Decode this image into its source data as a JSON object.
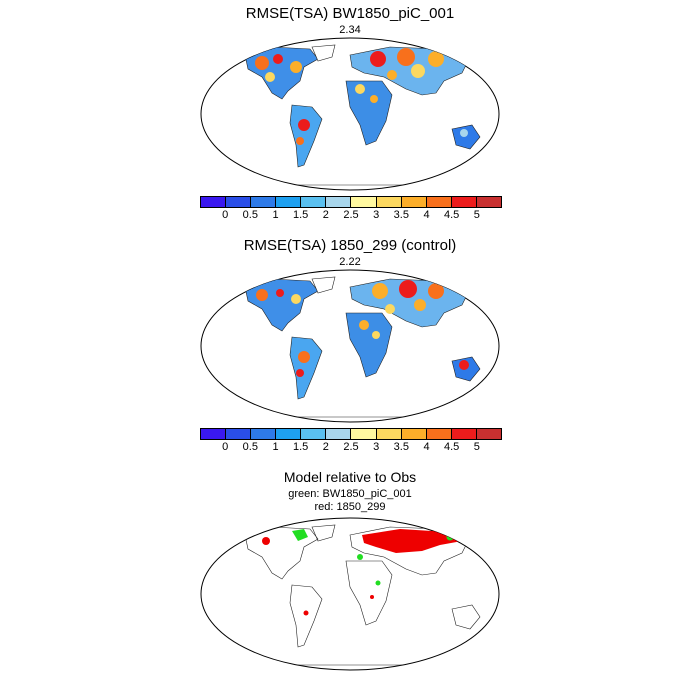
{
  "panels": [
    {
      "title": "RMSE(TSA) BW1850_piC_001",
      "value": "2.34"
    },
    {
      "title": "RMSE(TSA) 1850_299 (control)",
      "value": "2.22"
    }
  ],
  "colorbar": {
    "labels": [
      "0",
      "0.5",
      "1",
      "1.5",
      "2",
      "2.5",
      "3",
      "3.5",
      "4",
      "4.5",
      "5"
    ],
    "colors": [
      "#3a18f0",
      "#2a4ee8",
      "#2e7ae8",
      "#1ea0f0",
      "#5ac0f0",
      "#a8d6ec",
      "#fff8a0",
      "#fcd860",
      "#fcae2a",
      "#f8701c",
      "#ec1c1c",
      "#c83030"
    ]
  },
  "comparison": {
    "title": "Model relative to Obs",
    "green_label": "green: BW1850_piC_001",
    "red_label": "red: 1850_299",
    "green_color": "#22dd22",
    "red_color": "#ee0000"
  }
}
